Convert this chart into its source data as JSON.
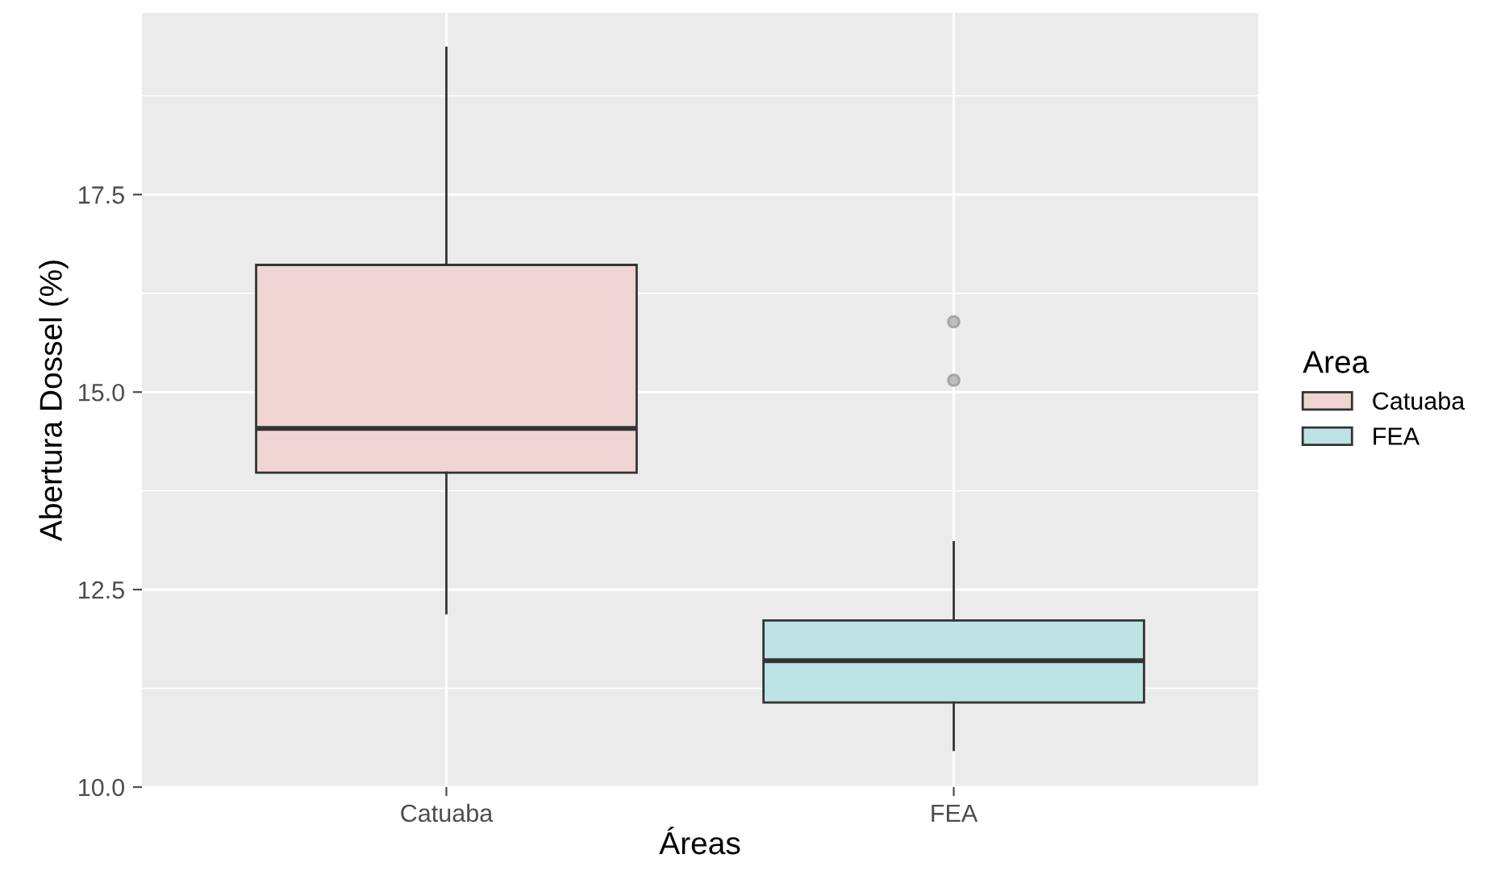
{
  "chart_data": {
    "type": "box",
    "xlabel": "Áreas",
    "ylabel": "Abertura Dossel (%)",
    "legend_title": "Area",
    "categories": [
      "Catuaba",
      "FEA"
    ],
    "series": [
      {
        "name": "Catuaba",
        "color": "#f0d4d4",
        "boxes": [
          {
            "low": 12.2,
            "q1": 13.98,
            "median": 14.54,
            "q3": 16.61,
            "high": 19.36
          },
          null
        ]
      },
      {
        "name": "FEA",
        "color": "#bde3e4",
        "boxes": [
          null,
          {
            "low": 10.47,
            "q1": 11.07,
            "median": 11.6,
            "q3": 12.11,
            "high": 13.1,
            "outliers": [
              15.15,
              15.89
            ]
          }
        ]
      }
    ],
    "ylim": [
      10.0,
      19.8
    ],
    "yticks": [
      {
        "value": 10,
        "label": "10.0"
      },
      {
        "value": 12.5,
        "label": "12.5"
      },
      {
        "value": 15,
        "label": "15.0"
      },
      {
        "value": 17.5,
        "label": "17.5"
      }
    ],
    "grid": true,
    "legend": "right"
  }
}
